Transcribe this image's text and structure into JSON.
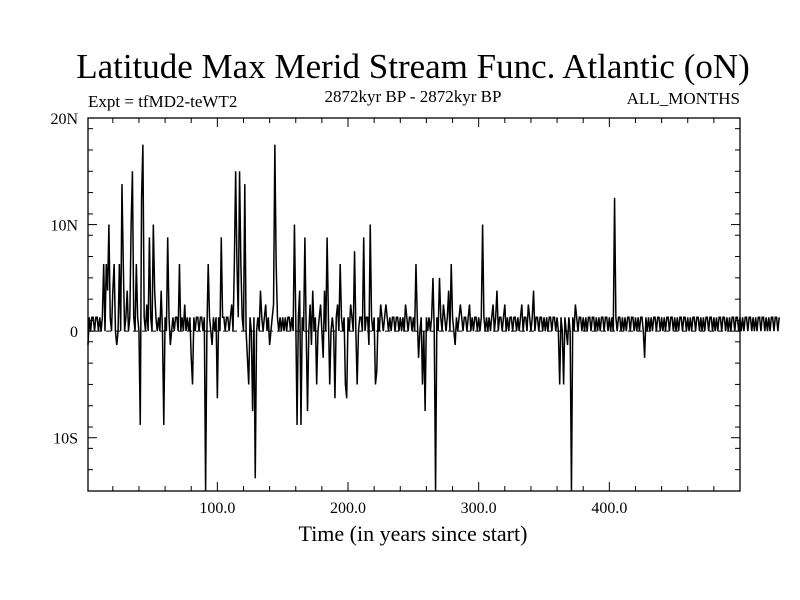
{
  "chart_data": {
    "type": "line",
    "title": "Latitude Max Merid Stream Func. Atlantic (oN)",
    "subtitle_left": "Expt = tfMD2-teWT2",
    "subtitle_center": "2872kyr BP - 2872kyr BP",
    "subtitle_right": "ALL_MONTHS",
    "xlabel": "Time (in years since start)",
    "ylabel": "",
    "xlim": [
      1,
      500
    ],
    "ylim": [
      -15,
      20
    ],
    "x_ticks": [
      {
        "value": 100,
        "label": "100.0"
      },
      {
        "value": 200,
        "label": "200.0"
      },
      {
        "value": 300,
        "label": "300.0"
      },
      {
        "value": 400,
        "label": "400.0"
      }
    ],
    "y_ticks": [
      {
        "value": 20,
        "label": "20N"
      },
      {
        "value": 10,
        "label": "10N"
      },
      {
        "value": 0,
        "label": "0"
      },
      {
        "value": -10,
        "label": "10S"
      }
    ],
    "reference_line": 0,
    "grid": false,
    "series": [
      {
        "name": "",
        "x_start": 1,
        "x_step": 1,
        "values": [
          -1.3,
          1.3,
          0,
          1.3,
          1.3,
          0,
          1.3,
          1.3,
          0,
          1.3,
          0,
          1.3,
          6.3,
          0,
          6.3,
          3.8,
          10.0,
          1.3,
          0,
          3.8,
          6.3,
          0,
          -1.3,
          0,
          6.3,
          0,
          13.8,
          6.3,
          0,
          1.3,
          3.8,
          0,
          1.3,
          10.0,
          15.0,
          1.3,
          0,
          6.3,
          1.3,
          0,
          -8.8,
          12.5,
          17.5,
          1.3,
          0,
          2.5,
          0,
          8.8,
          1.3,
          0,
          10.0,
          3.8,
          1.3,
          0,
          1.3,
          0,
          3.8,
          0,
          -8.8,
          1.3,
          0,
          8.8,
          1.3,
          -1.3,
          0,
          1.3,
          0,
          1.3,
          1.3,
          0,
          6.3,
          0,
          1.3,
          0,
          2.5,
          0,
          1.3,
          0,
          1.3,
          -2.5,
          -5.0,
          1.3,
          0,
          1.3,
          1.3,
          0,
          1.3,
          1.3,
          0,
          1.3,
          -15.0,
          0,
          6.3,
          1.3,
          0,
          -1.3,
          1.3,
          0,
          1.3,
          -6.3,
          1.3,
          0,
          8.8,
          1.3,
          1.3,
          0,
          1.3,
          1.3,
          0,
          1.3,
          2.5,
          0,
          6.3,
          15.0,
          6.3,
          1.3,
          15.0,
          6.3,
          1.3,
          0,
          13.8,
          0,
          -2.5,
          -5.0,
          1.3,
          0,
          -7.5,
          1.3,
          -13.8,
          0,
          1.3,
          0,
          3.8,
          1.3,
          0,
          1.3,
          2.5,
          0,
          1.3,
          -1.3,
          0,
          1.3,
          2.5,
          17.5,
          6.3,
          1.3,
          0,
          1.3,
          0,
          1.3,
          0,
          1.3,
          0,
          1.3,
          1.3,
          0,
          1.3,
          0,
          10.0,
          1.3,
          -8.8,
          1.3,
          3.8,
          -8.8,
          1.3,
          0,
          8.8,
          0,
          -7.5,
          0,
          2.5,
          -1.3,
          3.8,
          0,
          1.3,
          -5.0,
          0,
          1.3,
          2.5,
          0,
          -2.5,
          3.8,
          0,
          8.8,
          1.3,
          -5.0,
          0,
          1.3,
          0,
          -6.3,
          1.3,
          2.5,
          0,
          6.3,
          1.3,
          0,
          1.3,
          -5.0,
          -6.3,
          1.3,
          0,
          2.5,
          1.3,
          0,
          7.5,
          0,
          -5.0,
          0,
          1.3,
          1.3,
          0,
          8.8,
          0,
          1.3,
          1.3,
          -1.3,
          10.0,
          1.3,
          0,
          1.3,
          -5.0,
          -3.8,
          1.3,
          0,
          2.5,
          1.3,
          0,
          1.3,
          2.5,
          1.3,
          0,
          1.3,
          0,
          1.3,
          1.3,
          0,
          1.3,
          1.3,
          0,
          1.3,
          0,
          1.3,
          0,
          2.5,
          1.3,
          0,
          1.3,
          1.3,
          0,
          1.3,
          0,
          6.3,
          1.3,
          -2.5,
          0,
          1.3,
          -5.0,
          0,
          -7.5,
          1.3,
          0,
          1.3,
          0,
          1.3,
          5.0,
          0,
          -15.0,
          1.3,
          0,
          5.0,
          1.3,
          0,
          2.5,
          1.3,
          0,
          1.3,
          3.8,
          0,
          6.3,
          1.3,
          0,
          -1.3,
          1.3,
          0,
          1.3,
          2.5,
          1.3,
          0,
          1.3,
          1.3,
          0,
          1.3,
          2.5,
          0,
          1.3,
          0,
          1.3,
          1.3,
          0,
          1.3,
          0,
          1.3,
          10.0,
          1.3,
          0,
          1.3,
          0,
          1.3,
          0,
          1.3,
          2.5,
          0,
          1.3,
          3.8,
          0,
          1.3,
          1.3,
          0,
          1.3,
          2.5,
          0,
          1.3,
          0,
          1.3,
          1.3,
          0,
          1.3,
          1.3,
          0,
          1.3,
          0,
          1.3,
          2.5,
          0,
          1.3,
          1.3,
          0,
          2.5,
          1.3,
          0,
          1.3,
          3.8,
          0,
          1.3,
          1.3,
          0,
          1.3,
          1.3,
          0,
          1.3,
          0,
          1.3,
          0,
          1.3,
          1.3,
          0,
          1.3,
          1.3,
          0,
          1.3,
          0,
          -5.0,
          1.3,
          0,
          -5.0,
          1.3,
          0,
          -1.3,
          1.3,
          0,
          -15.0,
          1.3,
          0,
          2.5,
          1.3,
          0,
          1.3,
          1.3,
          0,
          1.3,
          0,
          1.3,
          0,
          1.3,
          1.3,
          0,
          1.3,
          1.3,
          0,
          1.3,
          0,
          1.3,
          0,
          1.3,
          1.3,
          0,
          1.3,
          1.3,
          0,
          1.3,
          0,
          1.3,
          0,
          12.5,
          1.3,
          0,
          1.3,
          1.3,
          0,
          1.3,
          0,
          1.3,
          0,
          1.3,
          1.3,
          0,
          1.3,
          1.3,
          0,
          1.3,
          0,
          1.3,
          0,
          1.3,
          1.3,
          0,
          -2.5,
          1.3,
          0,
          1.3,
          0,
          1.3,
          0,
          1.3,
          1.3,
          0,
          1.3,
          1.3,
          0,
          1.3,
          0,
          1.3,
          0,
          1.3,
          1.3,
          0,
          1.3,
          1.3,
          0,
          1.3,
          0,
          1.3,
          0,
          1.3,
          1.3,
          0,
          1.3,
          1.3,
          0,
          1.3,
          0,
          1.3,
          0,
          1.3,
          1.3,
          0,
          1.3,
          1.3,
          0,
          1.3,
          0,
          1.3,
          0,
          1.3,
          1.3,
          0,
          1.3,
          1.3,
          0,
          1.3,
          0,
          1.3,
          0,
          1.3,
          1.3,
          0,
          1.3,
          1.3,
          0,
          1.3,
          0,
          1.3,
          0,
          1.3,
          1.3,
          0,
          1.3,
          1.3,
          0,
          1.3,
          0,
          1.3,
          0,
          1.3,
          1.3,
          0,
          1.3,
          1.3,
          0,
          1.3,
          0,
          1.3,
          0,
          1.3,
          1.3,
          0,
          1.3,
          1.3,
          0,
          1.3,
          0,
          1.3,
          0,
          1.3,
          1.3,
          0,
          1.3,
          1.3,
          0,
          1.3
        ]
      }
    ]
  }
}
